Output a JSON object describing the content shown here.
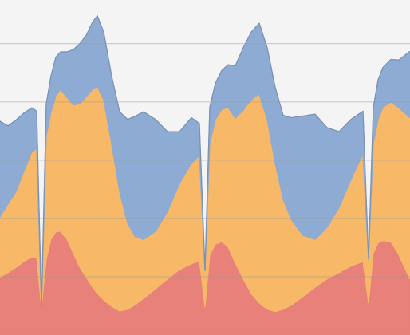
{
  "chart_data": {
    "type": "stacked-area",
    "x": [
      0,
      10,
      20,
      30,
      40,
      46,
      52,
      58,
      64,
      70,
      76,
      84,
      92,
      100,
      108,
      116,
      122,
      130,
      140,
      150,
      160,
      170,
      180,
      195,
      210,
      225,
      240,
      250,
      257,
      263,
      270,
      278,
      286,
      295,
      305,
      315,
      325,
      335,
      345,
      355,
      365,
      380,
      395,
      410,
      425,
      440,
      455,
      462,
      468,
      474,
      480,
      490,
      500,
      514
    ],
    "xlim": [
      0,
      514
    ],
    "ylim": [
      0,
      57.5
    ],
    "yticks": [
      10,
      20,
      30,
      40,
      50
    ],
    "grid": true,
    "series": [
      {
        "color": "#e8817a",
        "values": [
          9.9,
          10.7,
          11.6,
          12.6,
          13.4,
          13.2,
          4.8,
          13.0,
          16.4,
          17.7,
          17.8,
          16.4,
          14.0,
          11.6,
          9.9,
          8.2,
          7.1,
          6.0,
          4.9,
          4.1,
          4.4,
          5.2,
          6.3,
          7.9,
          9.6,
          11.2,
          12.2,
          12.7,
          4.8,
          13.7,
          15.6,
          16.0,
          15.1,
          12.3,
          9.6,
          7.1,
          5.5,
          4.4,
          4.0,
          4.4,
          5.1,
          6.6,
          8.2,
          9.6,
          10.7,
          11.8,
          12.6,
          5.5,
          14.0,
          15.8,
          16.2,
          16.0,
          13.7,
          9.6
        ]
      },
      {
        "color": "#f7b868",
        "values": [
          10.4,
          11.8,
          13.0,
          15.5,
          18.1,
          18.8,
          0,
          21.2,
          21.9,
          23.4,
          24.4,
          24.4,
          25.5,
          28.1,
          31.0,
          34.0,
          35.6,
          34.4,
          27.9,
          20.5,
          14.8,
          11.6,
          10.1,
          9.9,
          11.6,
          14.8,
          17.3,
          18.1,
          6.2,
          19.2,
          21.4,
          22.7,
          24.0,
          24.9,
          29.0,
          33.3,
          35.9,
          32.6,
          25.5,
          18.9,
          14.8,
          10.5,
          8.2,
          8.9,
          11.2,
          14.9,
          18.5,
          7.5,
          18.9,
          21.2,
          22.9,
          24.0,
          25.3,
          27.7
        ]
      },
      {
        "color": "#8eabd4",
        "values": [
          16.4,
          13.4,
          12.3,
          10.0,
          7.5,
          6.4,
          0,
          5.5,
          6.2,
          6.6,
          6.4,
          7.8,
          9.5,
          10.3,
          10.5,
          11.5,
          12.1,
          11.6,
          11.6,
          13.7,
          17.8,
          20.8,
          21.9,
          19.2,
          13.7,
          8.9,
          7.8,
          5.5,
          0,
          6.2,
          6.2,
          6.7,
          7.3,
          9.0,
          10.7,
          11.6,
          12.1,
          12.3,
          13.0,
          14.4,
          17.4,
          20.5,
          21.5,
          17.1,
          13.0,
          10.3,
          7.3,
          0,
          6.2,
          6.8,
          6.8,
          7.3,
          8.2,
          11.4
        ]
      }
    ]
  }
}
